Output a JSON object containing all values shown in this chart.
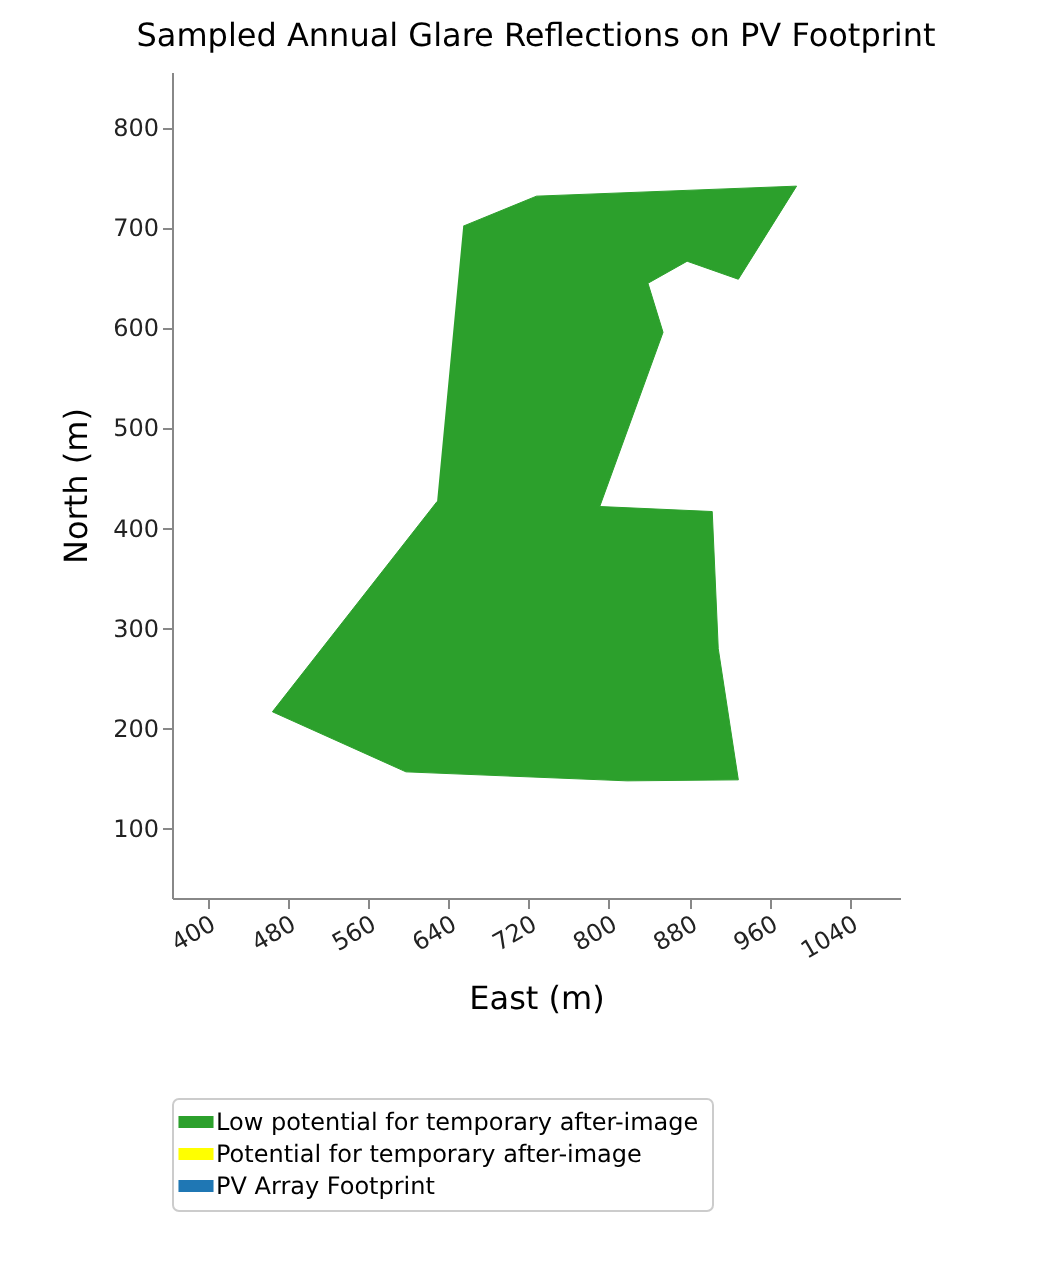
{
  "chart_data": {
    "type": "area",
    "title": "Sampled Annual Glare Reflections on PV Footprint",
    "xlabel": "East (m)",
    "ylabel": "North (m)",
    "xlim": [
      365,
      1090
    ],
    "xticks": [
      400,
      480,
      560,
      640,
      720,
      800,
      880,
      960,
      1040
    ],
    "ylim": [
      30,
      855
    ],
    "yticks": [
      100,
      200,
      300,
      400,
      500,
      600,
      700,
      800
    ],
    "legend": "bottom",
    "grid": false,
    "series": [
      {
        "name": "Low potential for temporary after-image",
        "color": "#2ca02c",
        "x": [
          655,
          728,
          987,
          929,
          878,
          839,
          854,
          791,
          903,
          909,
          929,
          818,
          598,
          465,
          629
        ],
        "values": [
          701,
          731,
          741,
          648,
          666,
          644,
          595,
          421,
          416,
          279,
          148,
          147,
          156,
          216,
          426
        ]
      },
      {
        "name": "Potential for temporary after-image",
        "color": "#ffff00"
      },
      {
        "name": "PV Array Footprint",
        "color": "#1f77b4"
      }
    ]
  }
}
